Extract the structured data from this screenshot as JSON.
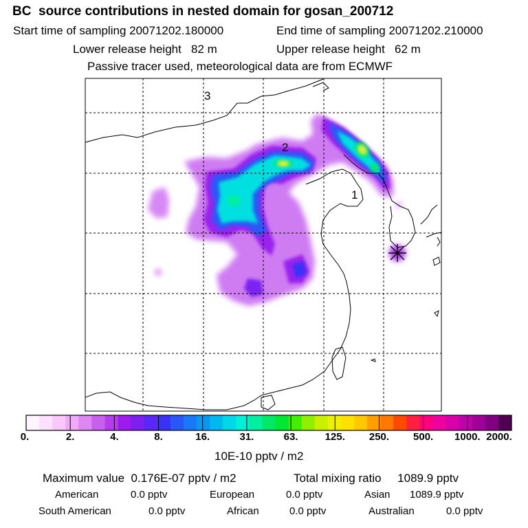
{
  "header": {
    "title": "BC  source contributions in nested domain for gosan_200712",
    "start_time": "Start time of sampling 20071202.180000",
    "end_time": "End time of sampling 20071202.210000",
    "lower_release": "Lower release height   82 m",
    "upper_release": "Upper release height   62 m",
    "note": "Passive tracer used, meteorological data are from ECMWF"
  },
  "map": {
    "labels": [
      {
        "id": "1",
        "text": "1"
      },
      {
        "id": "2",
        "text": "2"
      },
      {
        "id": "3",
        "text": "3"
      }
    ],
    "receptor_marker": "star-marker-icon",
    "colors": {
      "coast": "#000000",
      "grid": "#000000",
      "background": "#ffffff"
    }
  },
  "colorbar": {
    "colors": [
      "#fff4ff",
      "#fde0ff",
      "#f8c8fb",
      "#eeaaf6",
      "#dd88f2",
      "#c860ee",
      "#b53cee",
      "#9c1cee",
      "#7c20f2",
      "#5a28f6",
      "#3a30f6",
      "#2a58f6",
      "#1878f6",
      "#0898f4",
      "#00b8f0",
      "#00d8e8",
      "#00f0d8",
      "#00f0a0",
      "#00e868",
      "#00e830",
      "#40f000",
      "#90f000",
      "#c8f000",
      "#f0f000",
      "#ffe000",
      "#ffc800",
      "#ffa000",
      "#ff7800",
      "#ff4800",
      "#ff2040",
      "#ff0080",
      "#f000a0",
      "#d800a8",
      "#c000a8",
      "#a00098",
      "#800080",
      "#500050"
    ],
    "tick_labels": [
      "0.",
      "2.",
      "4.",
      "8.",
      "16.",
      "31.",
      "63.",
      "125.",
      "250.",
      "500.",
      "1000.",
      "2000."
    ],
    "unit": "10E-10 pptv / m2"
  },
  "stats": {
    "maximum_value": "Maximum value  0.176E-07 pptv / m2",
    "total_mixing_ratio": "Total mixing ratio     1089.9 pptv",
    "regions": [
      {
        "name": "American",
        "value": "0.0 pptv"
      },
      {
        "name": "European",
        "value": "0.0 pptv"
      },
      {
        "name": "Asian",
        "value": "1089.9 pptv"
      },
      {
        "name": "South American",
        "value": "0.0 pptv"
      },
      {
        "name": "African",
        "value": "0.0 pptv"
      },
      {
        "name": "Australian",
        "value": "0.0 pptv"
      }
    ]
  }
}
